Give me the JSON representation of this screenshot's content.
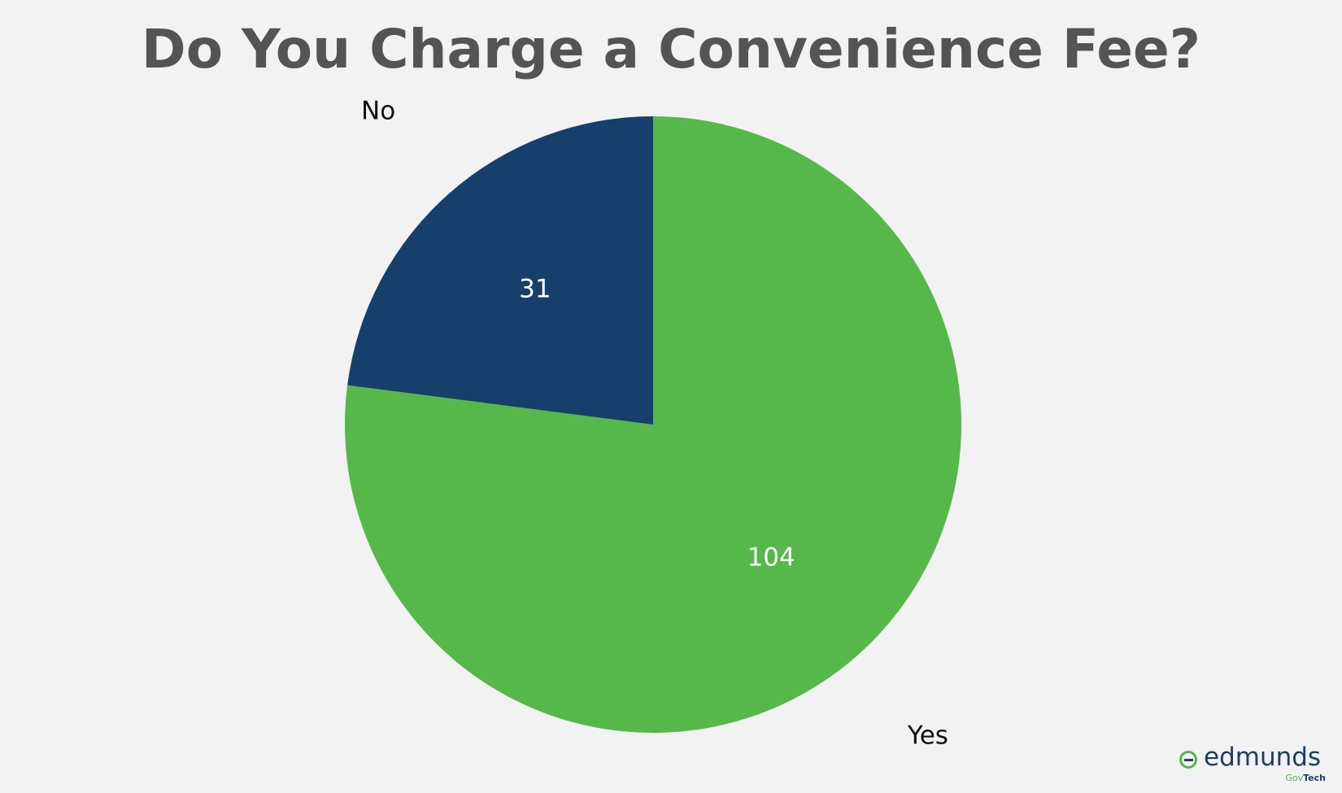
{
  "chart_data": {
    "type": "pie",
    "title": "Do You Charge a Convenience Fee?",
    "categories": [
      "Yes",
      "No"
    ],
    "values": [
      104,
      31
    ],
    "colors": [
      "#56b74a",
      "#173f6b"
    ],
    "data_labels": [
      "104",
      "31"
    ],
    "start_angle_deg": 0,
    "direction": "clockwise",
    "legend": "none"
  },
  "logo": {
    "word": "edmunds",
    "sub_gov": "Gov",
    "sub_tech": "Tech",
    "icon": "edmunds-e-icon"
  }
}
